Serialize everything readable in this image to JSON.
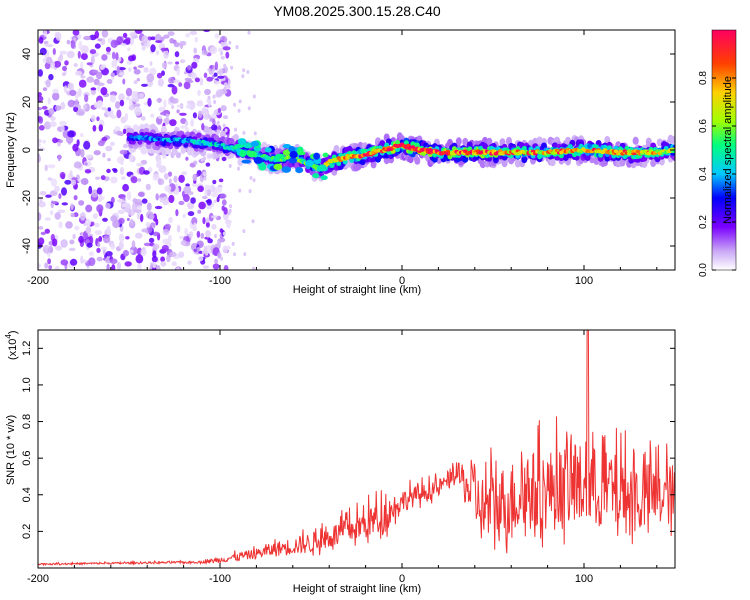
{
  "title": "YM08.2025.300.15.28.C40",
  "chart_data": [
    {
      "type": "heatmap",
      "xlabel": "Height of straight line (km)",
      "ylabel": "Frequency (Hz)",
      "xlim": [
        -200,
        150
      ],
      "ylim": [
        -50,
        50
      ],
      "x_ticks": [
        "-200",
        "-100",
        "0",
        "100"
      ],
      "y_ticks": [
        "-40",
        "-20",
        "0",
        "20",
        "40"
      ],
      "colorbar": {
        "label": "Normalized spectral amplitude",
        "range": [
          0,
          1
        ],
        "ticks": [
          "0.0",
          "0.2",
          "0.4",
          "0.6",
          "0.8"
        ],
        "colors": [
          "#ffffff",
          "#c9a6f5",
          "#7a00ff",
          "#0000ff",
          "#00c8ff",
          "#00ff80",
          "#a0ff00",
          "#ffd000",
          "#ff4000",
          "#ff0060"
        ]
      },
      "ridge": [
        {
          "x": -150,
          "y": 5,
          "v": 0.3
        },
        {
          "x": -140,
          "y": 5,
          "v": 0.35
        },
        {
          "x": -130,
          "y": 4,
          "v": 0.4
        },
        {
          "x": -120,
          "y": 4,
          "v": 0.38
        },
        {
          "x": -110,
          "y": 3,
          "v": 0.45
        },
        {
          "x": -100,
          "y": 2,
          "v": 0.42
        },
        {
          "x": -90,
          "y": 0,
          "v": 0.5
        },
        {
          "x": -80,
          "y": -2,
          "v": 0.45
        },
        {
          "x": -70,
          "y": -4,
          "v": 0.5
        },
        {
          "x": -60,
          "y": -3,
          "v": 0.55
        },
        {
          "x": -50,
          "y": -6,
          "v": 0.55
        },
        {
          "x": -45,
          "y": -8,
          "v": 0.5
        },
        {
          "x": -40,
          "y": -5,
          "v": 0.7
        },
        {
          "x": -30,
          "y": -3,
          "v": 0.75
        },
        {
          "x": -20,
          "y": -2,
          "v": 0.85
        },
        {
          "x": -10,
          "y": 0,
          "v": 0.9
        },
        {
          "x": 0,
          "y": 2,
          "v": 0.95
        },
        {
          "x": 10,
          "y": 0,
          "v": 0.95
        },
        {
          "x": 20,
          "y": -1,
          "v": 0.85
        },
        {
          "x": 40,
          "y": -1,
          "v": 0.9
        },
        {
          "x": 60,
          "y": -1,
          "v": 0.8
        },
        {
          "x": 80,
          "y": -1,
          "v": 0.75
        },
        {
          "x": 100,
          "y": 0,
          "v": 0.7
        },
        {
          "x": 120,
          "y": -1,
          "v": 0.8
        },
        {
          "x": 140,
          "y": -1,
          "v": 0.7
        },
        {
          "x": 150,
          "y": 0,
          "v": 0.6
        }
      ],
      "noise_region_x": [
        -200,
        -110
      ]
    },
    {
      "type": "line",
      "xlabel": "Height of straight line (km)",
      "ylabel": "SNR (10 * v/v)",
      "y_multiplier": "(x10",
      "y_multiplier_exp": "4",
      "y_multiplier_close": ")",
      "xlim": [
        -200,
        150
      ],
      "ylim": [
        0,
        13000
      ],
      "x_ticks": [
        "-200",
        "-100",
        "0",
        "100"
      ],
      "y_ticks": [
        "0.2",
        "0.4",
        "0.6",
        "0.8",
        "1.0",
        "1.2"
      ],
      "color": "#ee3333",
      "envelope": [
        {
          "x": -200,
          "base": 200,
          "amp": 100
        },
        {
          "x": -110,
          "base": 300,
          "amp": 150
        },
        {
          "x": -100,
          "base": 400,
          "amp": 400
        },
        {
          "x": -80,
          "base": 700,
          "amp": 700
        },
        {
          "x": -70,
          "base": 900,
          "amp": 1000
        },
        {
          "x": -50,
          "base": 1200,
          "amp": 1400
        },
        {
          "x": -30,
          "base": 1800,
          "amp": 1800
        },
        {
          "x": -10,
          "base": 2500,
          "amp": 2500
        },
        {
          "x": 0,
          "base": 3500,
          "amp": 1500
        },
        {
          "x": 20,
          "base": 4200,
          "amp": 1200
        },
        {
          "x": 30,
          "base": 5000,
          "amp": 1500
        },
        {
          "x": 45,
          "base": 2500,
          "amp": 5000
        },
        {
          "x": 70,
          "base": 3500,
          "amp": 5500
        },
        {
          "x": 100,
          "base": 3800,
          "amp": 5800
        },
        {
          "x": 130,
          "base": 3200,
          "amp": 5000
        },
        {
          "x": 150,
          "base": 3500,
          "amp": 4200
        }
      ],
      "peak": {
        "x": 102,
        "y": 13000
      }
    }
  ]
}
